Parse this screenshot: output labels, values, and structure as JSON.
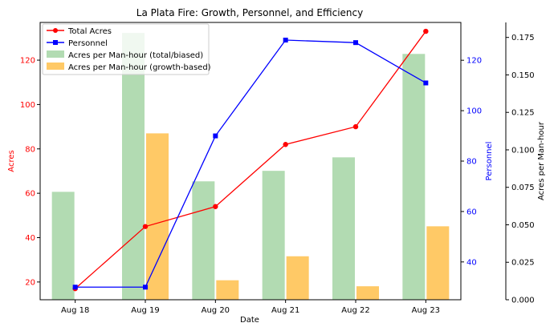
{
  "chart_data": {
    "type": "bar+line",
    "title": "La Plata Fire: Growth, Personnel, and Efficiency",
    "categories": [
      "Aug 18",
      "Aug 19",
      "Aug 20",
      "Aug 21",
      "Aug 22",
      "Aug 23"
    ],
    "xlabel": "Date",
    "axes": {
      "acres": {
        "label": "Acres",
        "color": "#ff0000",
        "ylim": [
          12,
          137
        ],
        "ticks": [
          20,
          40,
          60,
          80,
          100,
          120
        ]
      },
      "personnel": {
        "label": "Personnel",
        "color": "#0000ff",
        "ylim": [
          25,
          135
        ],
        "ticks": [
          40,
          60,
          80,
          100,
          120
        ]
      },
      "efficiency": {
        "label": "Acres per Man-hour",
        "color": "#000000",
        "ylim": [
          0,
          0.185
        ],
        "ticks": [
          "0.000",
          "0.025",
          "0.050",
          "0.075",
          "0.100",
          "0.125",
          "0.150",
          "0.175"
        ]
      }
    },
    "series": [
      {
        "name": "Total Acres",
        "type": "line",
        "axis": "acres",
        "color": "#ff0000",
        "marker": "circle",
        "values": [
          17,
          45,
          54,
          82,
          90,
          133
        ]
      },
      {
        "name": "Personnel",
        "type": "line",
        "axis": "personnel",
        "color": "#0000ff",
        "marker": "square",
        "values": [
          30,
          30,
          90,
          128,
          127,
          111
        ]
      },
      {
        "name": "Acres per Man-hour (total/biased)",
        "type": "bar",
        "axis": "efficiency",
        "color": "#b2dbb2",
        "values": [
          0.072,
          0.178,
          0.079,
          0.086,
          0.095,
          0.164
        ]
      },
      {
        "name": "Acres per Man-hour (growth-based)",
        "type": "bar",
        "axis": "efficiency",
        "color": "#ffc966",
        "values": [
          null,
          0.111,
          0.013,
          0.029,
          0.009,
          0.049
        ]
      }
    ],
    "grid": false,
    "legend": "top-left"
  }
}
